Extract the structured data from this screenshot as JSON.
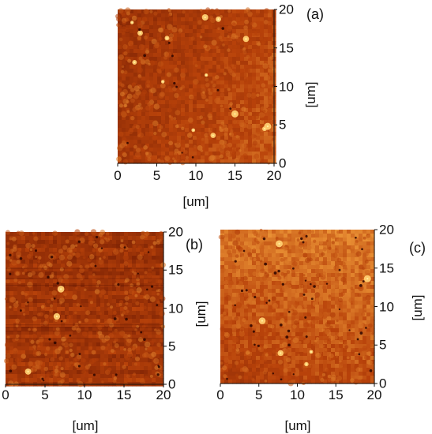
{
  "colors": {
    "background": "#ffffff",
    "text": "#111111",
    "afm_dark": "#5a0f00",
    "afm_mid": "#b8420a",
    "afm_bright": "#ffb347",
    "afm_peak": "#fff0a0"
  },
  "panels": [
    {
      "id": "a",
      "letter": "(a)",
      "x_ticks": [
        "0",
        "5",
        "10",
        "15",
        "20"
      ],
      "y_ticks": [
        "0",
        "5",
        "10",
        "15",
        "20"
      ],
      "x_title": "[um]",
      "y_title": "[um]"
    },
    {
      "id": "b",
      "letter": "(b)",
      "x_ticks": [
        "0",
        "5",
        "10",
        "15",
        "20"
      ],
      "y_ticks": [
        "0",
        "5",
        "10",
        "15",
        "20"
      ],
      "x_title": "[um]",
      "y_title": "[um]"
    },
    {
      "id": "c",
      "letter": "(c)",
      "x_ticks": [
        "0",
        "5",
        "10",
        "15",
        "20"
      ],
      "y_ticks": [
        "0",
        "5",
        "10",
        "15",
        "20"
      ],
      "x_title": "[um]",
      "y_title": "[um]"
    }
  ]
}
